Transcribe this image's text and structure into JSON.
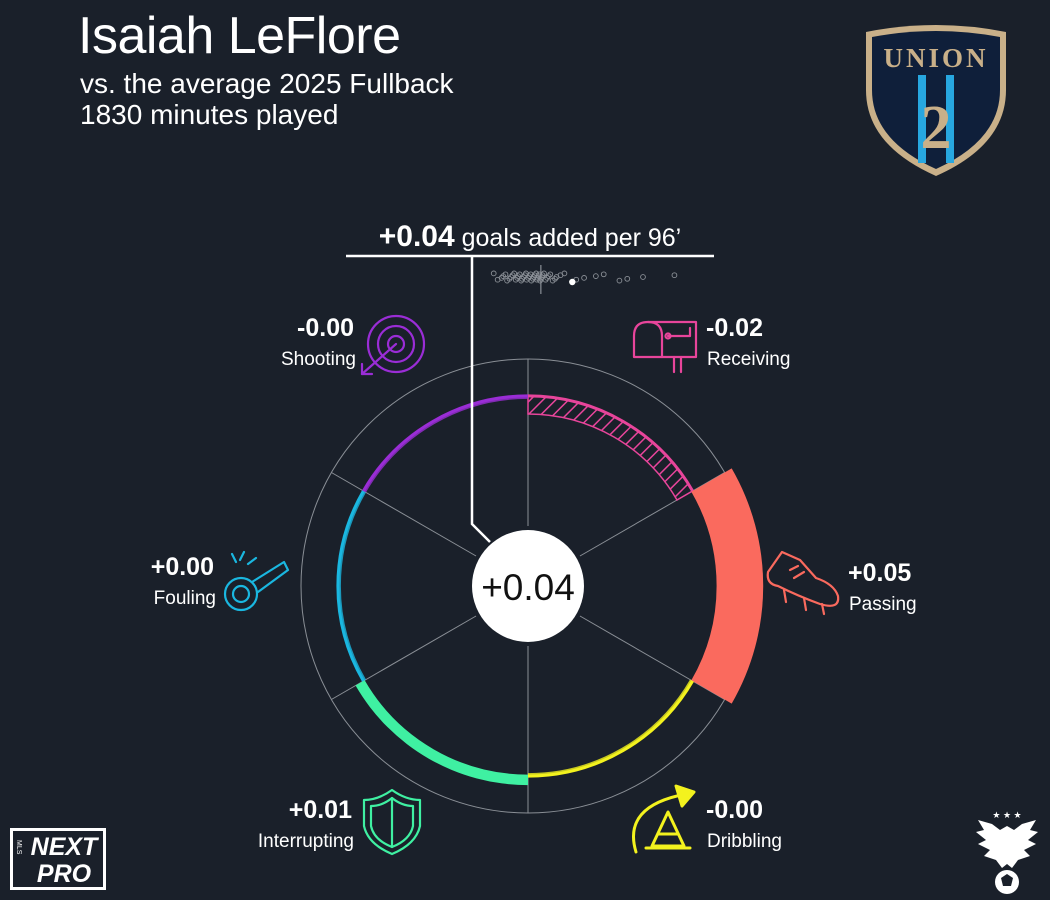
{
  "header": {
    "title": "Isaiah LeFlore",
    "subtitle_line1": "vs. the average 2025 Fullback",
    "subtitle_line2": "1830 minutes played"
  },
  "total": {
    "value_label": "+0.04",
    "label_suffix": " goals added per 96’",
    "center_label": "+0.04"
  },
  "logos": {
    "club_crest": {
      "top_text": "UNION",
      "number": "2"
    },
    "league_logo": {
      "line1": "NEXT",
      "line2": "PRO",
      "side_text": "MLS"
    }
  },
  "colors": {
    "background": "#1a202a",
    "grid": "#8a8f96",
    "receiving": "#e8459b",
    "passing": "#fa6a5e",
    "dribbling": "#f3f21e",
    "interrupting": "#3ff0a2",
    "fouling": "#1ab7e0",
    "shooting": "#9a2dd6"
  },
  "chart_data": {
    "type": "radial_bar",
    "title": "goals added per 96’",
    "total": 0.04,
    "axis_range": [
      -0.05,
      0.05
    ],
    "categories": [
      {
        "name": "Receiving",
        "value": -0.02,
        "label": "-0.02",
        "icon": "mailbox-icon",
        "color": "#e8459b"
      },
      {
        "name": "Passing",
        "value": 0.05,
        "label": "+0.05",
        "icon": "boot-icon",
        "color": "#fa6a5e"
      },
      {
        "name": "Dribbling",
        "value": -0.0,
        "label": "-0.00",
        "icon": "cone-arrow-icon",
        "color": "#f3f21e"
      },
      {
        "name": "Interrupting",
        "value": 0.01,
        "label": "+0.01",
        "icon": "shield-icon",
        "color": "#3ff0a2"
      },
      {
        "name": "Fouling",
        "value": 0.0,
        "label": "+0.00",
        "icon": "whistle-icon",
        "color": "#1ab7e0"
      },
      {
        "name": "Shooting",
        "value": -0.0,
        "label": "-0.00",
        "icon": "target-icon",
        "color": "#9a2dd6"
      }
    ],
    "distribution": {
      "description_label": "",
      "player_value": 0.04,
      "average_value": 0.0,
      "other_players": [
        -0.06,
        -0.055,
        -0.05,
        -0.048,
        -0.045,
        -0.043,
        -0.04,
        -0.038,
        -0.036,
        -0.034,
        -0.032,
        -0.03,
        -0.029,
        -0.027,
        -0.025,
        -0.024,
        -0.022,
        -0.02,
        -0.019,
        -0.018,
        -0.016,
        -0.015,
        -0.013,
        -0.012,
        -0.01,
        -0.009,
        -0.008,
        -0.006,
        -0.005,
        -0.004,
        -0.003,
        -0.002,
        -0.001,
        0.0,
        0.001,
        0.002,
        0.004,
        0.006,
        0.008,
        0.01,
        0.012,
        0.015,
        0.018,
        0.02,
        0.025,
        0.03,
        0.045,
        0.055,
        0.07,
        0.08,
        0.1,
        0.11,
        0.13,
        0.17
      ],
      "range": [
        -0.08,
        0.2
      ]
    }
  }
}
